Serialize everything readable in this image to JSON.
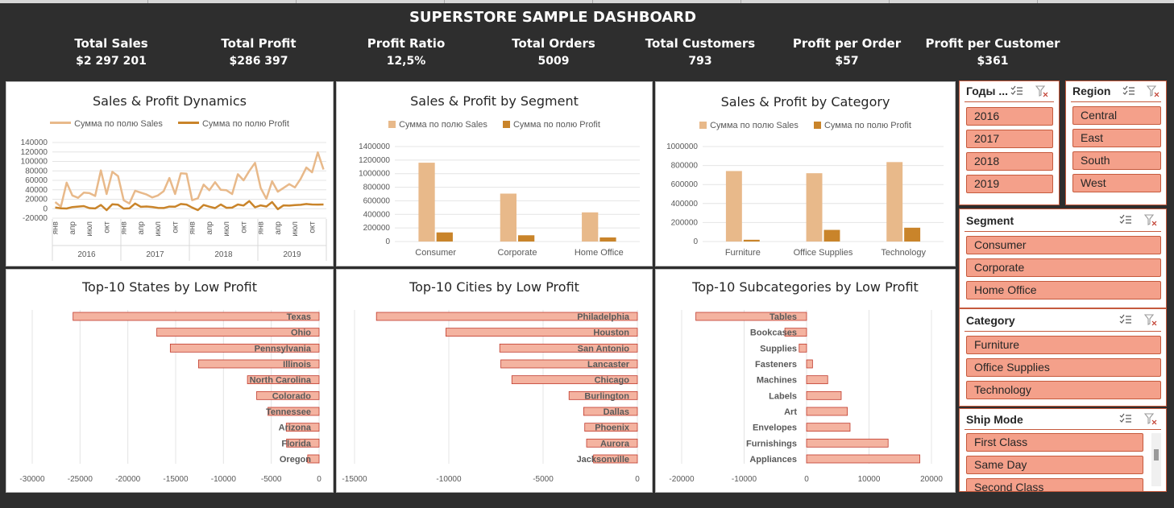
{
  "dashboard": {
    "title": "SUPERSTORE SAMPLE DASHBOARD",
    "kpis": [
      {
        "label": "Total Sales",
        "value": "$2 297 201"
      },
      {
        "label": "Total Profit",
        "value": "$286 397"
      },
      {
        "label": "Profit Ratio",
        "value": "12,5%"
      },
      {
        "label": "Total Orders",
        "value": "5009"
      },
      {
        "label": "Total Customers",
        "value": "793"
      },
      {
        "label": "Profit per Order",
        "value": "$57"
      },
      {
        "label": "Profit per Customer",
        "value": "$361"
      }
    ]
  },
  "colors": {
    "sales": "#e8b98a",
    "profit": "#c9842a",
    "neg_bar": "#f4b3a0",
    "neg_bar_border": "#c0392b",
    "slicer_btn": "#f4a08a",
    "slicer_border": "#c55a3d"
  },
  "legend": {
    "sales": "Сумма по полю Sales",
    "profit": "Сумма по полю Profit"
  },
  "slicers": {
    "years": {
      "title": "Годы ...",
      "items": [
        "2016",
        "2017",
        "2018",
        "2019"
      ]
    },
    "region": {
      "title": "Region",
      "items": [
        "Central",
        "East",
        "South",
        "West"
      ]
    },
    "segment": {
      "title": "Segment",
      "items": [
        "Consumer",
        "Corporate",
        "Home Office"
      ]
    },
    "category": {
      "title": "Category",
      "items": [
        "Furniture",
        "Office Supplies",
        "Technology"
      ]
    },
    "ship_mode": {
      "title": "Ship Mode",
      "items": [
        "First Class",
        "Same Day",
        "Second Class"
      ]
    }
  },
  "icons": {
    "multiselect": "multi-select-icon",
    "clear_filter": "clear-filter-icon"
  },
  "chart_data": [
    {
      "id": "dyn",
      "type": "line",
      "title": "Sales & Profit Dynamics",
      "ylim": [
        -20000,
        140000
      ],
      "yticks": [
        -20000,
        0,
        20000,
        40000,
        60000,
        80000,
        100000,
        120000,
        140000
      ],
      "ytick_labels": [
        "-20000",
        "0",
        "20000",
        "40000",
        "60000",
        "80000",
        "100000",
        "120000",
        "140000"
      ],
      "month_labels": [
        "янв",
        "апр",
        "июл",
        "окт"
      ],
      "years": [
        "2016",
        "2017",
        "2018",
        "2019"
      ],
      "grid": true,
      "legend_position": "top",
      "series": [
        {
          "name": "Сумма по полю Sales",
          "values": [
            14000,
            4500,
            55000,
            28000,
            23000,
            34000,
            33000,
            27000,
            81000,
            31000,
            78000,
            69000,
            18000,
            11000,
            38000,
            34000,
            30000,
            24000,
            28000,
            37000,
            65000,
            31000,
            75000,
            74000,
            18000,
            22000,
            51000,
            39000,
            56000,
            40000,
            39000,
            31000,
            73000,
            60000,
            80000,
            97000,
            44000,
            21000,
            58000,
            36000,
            44000,
            52000,
            45000,
            63000,
            87000,
            77000,
            119000,
            83000
          ]
        },
        {
          "name": "Сумма по полю Profit",
          "values": [
            2500,
            900,
            500,
            3500,
            4500,
            5500,
            1300,
            600,
            8000,
            -3000,
            9500,
            8500,
            250,
            700,
            11000,
            4000,
            4600,
            3600,
            1800,
            1500,
            4500,
            4200,
            10000,
            8800,
            2500,
            -3000,
            8000,
            4400,
            1200,
            8900,
            2000,
            2300,
            9000,
            6800,
            16000,
            2900,
            7000,
            4600,
            14000,
            -1000,
            7000,
            6500,
            7500,
            8300,
            10000,
            9000,
            8800,
            9000
          ]
        }
      ]
    },
    {
      "id": "seg",
      "type": "bar",
      "title": "Sales & Profit by Segment",
      "categories": [
        "Consumer",
        "Corporate",
        "Home Office"
      ],
      "ylim": [
        0,
        1400000
      ],
      "yticks": [
        0,
        200000,
        400000,
        600000,
        800000,
        1000000,
        1200000,
        1400000
      ],
      "ytick_labels": [
        "0",
        "200000",
        "400000",
        "600000",
        "800000",
        "1000000",
        "1200000",
        "1400000"
      ],
      "grid": true,
      "legend_position": "top",
      "series": [
        {
          "name": "Сумма по полю Sales",
          "values": [
            1161401,
            706146,
            429653
          ]
        },
        {
          "name": "Сумма по полю Profit",
          "values": [
            134119,
            91979,
            60299
          ]
        }
      ]
    },
    {
      "id": "cat",
      "type": "bar",
      "title": "Sales & Profit by Category",
      "categories": [
        "Furniture",
        "Office Supplies",
        "Technology"
      ],
      "ylim": [
        0,
        1000000
      ],
      "yticks": [
        0,
        200000,
        400000,
        600000,
        800000,
        1000000
      ],
      "ytick_labels": [
        "0",
        "200000",
        "400000",
        "600000",
        "800000",
        "1000000"
      ],
      "grid": true,
      "legend_position": "top",
      "series": [
        {
          "name": "Сумма по полю Sales",
          "values": [
            741999,
            719047,
            836154
          ]
        },
        {
          "name": "Сумма по полю Profit",
          "values": [
            18451,
            122491,
            145455
          ]
        }
      ]
    },
    {
      "id": "states",
      "type": "bar",
      "orientation": "horizontal",
      "title": "Top-10 States by Low Profit",
      "categories": [
        "Texas",
        "Ohio",
        "Pennsylvania",
        "Illinois",
        "North Carolina",
        "Colorado",
        "Tennessee",
        "Arizona",
        "Florida",
        "Oregon"
      ],
      "values": [
        -25729,
        -16971,
        -15560,
        -12608,
        -7491,
        -6527,
        -5342,
        -3428,
        -3399,
        -1190
      ],
      "xlim": [
        -30000,
        0
      ],
      "xticks": [
        -30000,
        -25000,
        -20000,
        -15000,
        -10000,
        -5000,
        0
      ],
      "xtick_labels": [
        "-30000",
        "-25000",
        "-20000",
        "-15000",
        "-10000",
        "-5000",
        "0"
      ],
      "grid": true
    },
    {
      "id": "cities",
      "type": "bar",
      "orientation": "horizontal",
      "title": "Top-10 Cities by Low Profit",
      "categories": [
        "Philadelphia",
        "Houston",
        "San Antonio",
        "Lancaster",
        "Chicago",
        "Burlington",
        "Dallas",
        "Phoenix",
        "Aurora",
        "Jacksonville"
      ],
      "values": [
        -13838,
        -10154,
        -7299,
        -7240,
        -6655,
        -3623,
        -2846,
        -2790,
        -2692,
        -2323
      ],
      "xlim": [
        -15000,
        0
      ],
      "xticks": [
        -15000,
        -10000,
        -5000,
        0
      ],
      "xtick_labels": [
        "-15000",
        "-10000",
        "-5000",
        "0"
      ],
      "grid": true
    },
    {
      "id": "subcats",
      "type": "bar",
      "orientation": "horizontal",
      "title": "Top-10 Subcategories by Low Profit",
      "categories": [
        "Tables",
        "Bookcases",
        "Supplies",
        "Fasteners",
        "Machines",
        "Labels",
        "Art",
        "Envelopes",
        "Furnishings",
        "Appliances"
      ],
      "values": [
        -17725,
        -3473,
        -1189,
        950,
        3385,
        5546,
        6528,
        6964,
        13059,
        18138
      ],
      "xlim": [
        -20000,
        20000
      ],
      "xticks": [
        -20000,
        -10000,
        0,
        10000,
        20000
      ],
      "xtick_labels": [
        "-20000",
        "-10000",
        "0",
        "10000",
        "20000"
      ],
      "grid": true
    }
  ]
}
